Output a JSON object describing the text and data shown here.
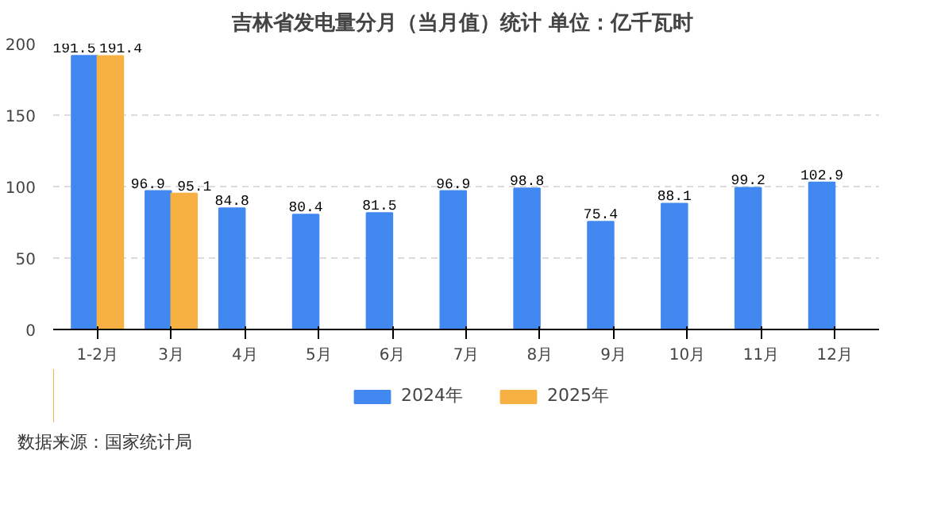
{
  "chart_data": {
    "type": "bar",
    "title": "吉林省发电量分月（当月值）统计  单位：亿千瓦时",
    "categories": [
      "1-2月",
      "3月",
      "4月",
      "5月",
      "6月",
      "7月",
      "8月",
      "9月",
      "10月",
      "11月",
      "12月"
    ],
    "series": [
      {
        "name": "2024年",
        "color": "#4189f0",
        "values": [
          191.5,
          96.9,
          84.8,
          80.4,
          81.5,
          96.9,
          98.8,
          75.4,
          88.1,
          99.2,
          102.9
        ]
      },
      {
        "name": "2025年",
        "color": "#f7b143",
        "values": [
          191.4,
          95.1,
          null,
          null,
          null,
          null,
          null,
          null,
          null,
          null,
          null
        ]
      }
    ],
    "ylim": [
      0,
      200
    ],
    "yticks": [
      0,
      50,
      100,
      150,
      200
    ],
    "grid": "y",
    "legend": "bottom",
    "data_labels": true,
    "annotations": [
      "数据来源：国家统计局"
    ]
  }
}
